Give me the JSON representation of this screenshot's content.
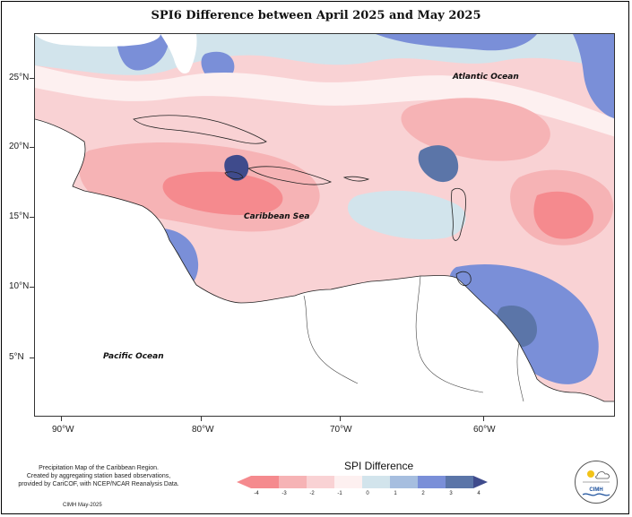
{
  "title": "SPI6 Difference between April 2025 and May 2025",
  "latitude_labels": [
    "25°N",
    "20°N",
    "15°N",
    "10°N",
    "5°N"
  ],
  "longitude_labels": [
    "90°W",
    "80°W",
    "70°W",
    "60°W"
  ],
  "oceans": {
    "atlantic": "Atlantic Ocean",
    "caribbean": "Caribbean Sea",
    "pacific": "Pacific Ocean"
  },
  "credits": {
    "line1": "Precipitation Map of the Caribbean Region.",
    "line2": "Created by aggregating station based observations,",
    "line3": "provided by CariCOF, with NCEP/NCAR Reanalysis Data.",
    "date": "CIMH May-2025"
  },
  "legend": {
    "title": "SPI Difference",
    "ticks": [
      "-4",
      "-3",
      "-2",
      "-1",
      "0",
      "1",
      "2",
      "3",
      "4"
    ],
    "colors": [
      "#f58a8e",
      "#f6b3b5",
      "#f9d2d4",
      "#fdf0f0",
      "#d2e4ec",
      "#a6bedf",
      "#7a8fd8",
      "#5b75a8",
      "#3f4b8c"
    ]
  },
  "logo": {
    "text": "CIMH"
  },
  "colors": {
    "land": "#ffffff",
    "strong_dry": "#f58a8e",
    "moderate_dry": "#f6b3b5",
    "mild_dry": "#f9d2d4",
    "neutral": "#fdf0f0",
    "mild_wet": "#d2e4ec",
    "moderate_wet": "#7a8fd8",
    "strong_wet": "#5b75a8"
  }
}
